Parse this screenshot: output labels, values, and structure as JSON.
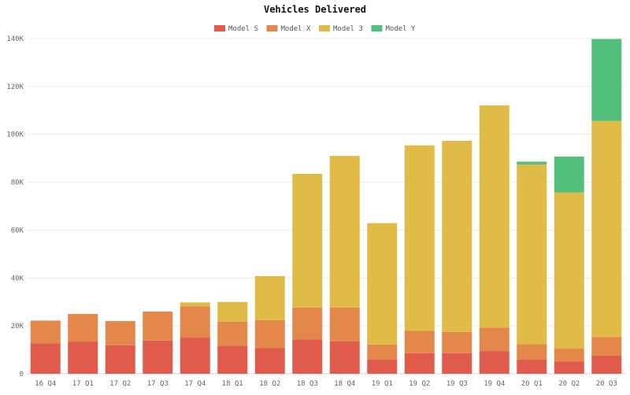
{
  "chart_data": {
    "type": "bar",
    "stacked": true,
    "title": "Vehicles Delivered",
    "xlabel": "",
    "ylabel": "",
    "categories": [
      "16 Q4",
      "17 Q1",
      "17 Q2",
      "17 Q3",
      "17 Q4",
      "18 Q1",
      "18 Q2",
      "18 Q3",
      "18 Q4",
      "19 Q1",
      "19 Q2",
      "19 Q3",
      "19 Q4",
      "20 Q1",
      "20 Q2",
      "20 Q3"
    ],
    "series": [
      {
        "name": "Model S",
        "color": "#e15b4c",
        "values": [
          12700,
          13450,
          11900,
          13900,
          15100,
          11700,
          10800,
          14400,
          13500,
          5900,
          8600,
          8600,
          9500,
          5900,
          5100,
          7600
        ]
      },
      {
        "name": "Model X",
        "color": "#e3874a",
        "values": [
          9500,
          11550,
          10100,
          12100,
          13100,
          10100,
          11600,
          13300,
          14200,
          6300,
          9300,
          8900,
          9800,
          6400,
          5400,
          7700
        ]
      },
      {
        "name": "Model 3",
        "color": "#e1bb48",
        "values": [
          0,
          0,
          0,
          0,
          1600,
          8200,
          18400,
          55800,
          63300,
          50700,
          77500,
          79800,
          92800,
          75100,
          65200,
          90300
        ]
      },
      {
        "name": "Model Y",
        "color": "#52bf7a",
        "values": [
          0,
          0,
          0,
          0,
          0,
          0,
          0,
          0,
          0,
          0,
          0,
          0,
          0,
          1200,
          15000,
          34200
        ]
      }
    ],
    "ylim": [
      0,
      140000
    ],
    "yticks": [
      0,
      20000,
      40000,
      60000,
      80000,
      100000,
      120000,
      140000
    ],
    "ytick_labels": [
      "0",
      "20K",
      "40K",
      "60K",
      "80K",
      "100K",
      "120K",
      "140K"
    ],
    "grid": true,
    "legend_position": "top-center"
  }
}
